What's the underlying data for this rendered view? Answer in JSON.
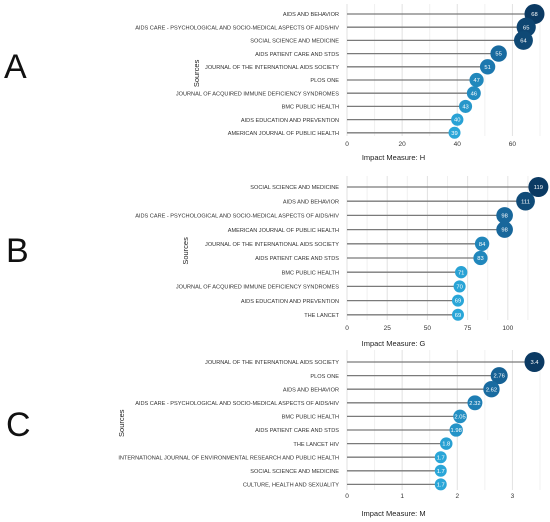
{
  "panels": [
    {
      "letter": "A"
    },
    {
      "letter": "B"
    },
    {
      "letter": "C"
    }
  ],
  "chart_data": [
    {
      "type": "lollipop",
      "panel": "A",
      "ylabel": "Sources",
      "xlabel": "Impact Measure: H",
      "xticks": [
        0,
        20,
        40,
        60
      ],
      "xlim": [
        0,
        70
      ],
      "grid": true,
      "categories": [
        "AIDS AND BEHAVIOR",
        "AIDS CARE - PSYCHOLOGICAL AND SOCIO-MEDICAL ASPECTS OF AIDS/HIV",
        "SOCIAL SCIENCE AND MEDICINE",
        "AIDS PATIENT CARE AND STDS",
        "JOURNAL OF THE INTERNATIONAL AIDS SOCIETY",
        "PLOS ONE",
        "JOURNAL OF ACQUIRED IMMUNE DEFICIENCY SYNDROMES",
        "BMC PUBLIC HEALTH",
        "AIDS EDUCATION AND PREVENTION",
        "AMERICAN JOURNAL OF PUBLIC HEALTH"
      ],
      "values": [
        68,
        65,
        64,
        55,
        51,
        47,
        46,
        43,
        40,
        39
      ],
      "labels": [
        "68",
        "65",
        "64",
        "55",
        "51",
        "47",
        "46",
        "43",
        "40",
        "39"
      ]
    },
    {
      "type": "lollipop",
      "panel": "B",
      "ylabel": "Sources",
      "xlabel": "Impact Measure: G",
      "xticks": [
        0,
        25,
        50,
        75,
        100
      ],
      "xlim": [
        0,
        120
      ],
      "grid": true,
      "categories": [
        "SOCIAL SCIENCE AND MEDICINE",
        "AIDS AND BEHAVIOR",
        "AIDS CARE - PSYCHOLOGICAL AND SOCIO-MEDICAL ASPECTS OF AIDS/HIV",
        "AMERICAN JOURNAL OF PUBLIC HEALTH",
        "JOURNAL OF THE INTERNATIONAL AIDS SOCIETY",
        "AIDS PATIENT CARE AND STDS",
        "BMC PUBLIC HEALTH",
        "JOURNAL OF ACQUIRED IMMUNE DEFICIENCY SYNDROMES",
        "AIDS EDUCATION AND PREVENTION",
        "THE LANCET"
      ],
      "values": [
        119,
        111,
        98,
        98,
        84,
        83,
        71,
        70,
        69,
        69
      ],
      "labels": [
        "119",
        "111",
        "98",
        "98",
        "84",
        "83",
        "71",
        "70",
        "69",
        "69"
      ]
    },
    {
      "type": "lollipop",
      "panel": "C",
      "ylabel": "Sources",
      "xlabel": "Impact Measure: M",
      "xticks": [
        0,
        1,
        2,
        3
      ],
      "xlim": [
        0,
        3.5
      ],
      "grid": true,
      "categories": [
        "JOURNAL OF THE INTERNATIONAL AIDS SOCIETY",
        "PLOS ONE",
        "AIDS AND BEHAVIOR",
        "AIDS CARE - PSYCHOLOGICAL AND SOCIO-MEDICAL ASPECTS OF AIDS/HIV",
        "BMC PUBLIC HEALTH",
        "AIDS PATIENT CARE AND STDS",
        "THE LANCET HIV",
        "INTERNATIONAL JOURNAL OF ENVIRONMENTAL RESEARCH AND PUBLIC HEALTH",
        "SOCIAL SCIENCE AND MEDICINE",
        "CULTURE, HEALTH AND SEXUALITY"
      ],
      "values": [
        3.4,
        2.76,
        2.62,
        2.32,
        2.05,
        1.98,
        1.8,
        1.7,
        1.7,
        1.7
      ],
      "labels": [
        "3.4",
        "2.76",
        "2.62",
        "2.32",
        "2.05",
        "1.98",
        "1.8",
        "1.7",
        "1.7",
        "1.7"
      ]
    }
  ],
  "colors": {
    "dark": "#0b3a63",
    "mid": "#1a6fa6",
    "light": "#2aa6d8",
    "stem": "#7a7a7a",
    "grid": "#e2e2e2",
    "text": "#333333"
  }
}
